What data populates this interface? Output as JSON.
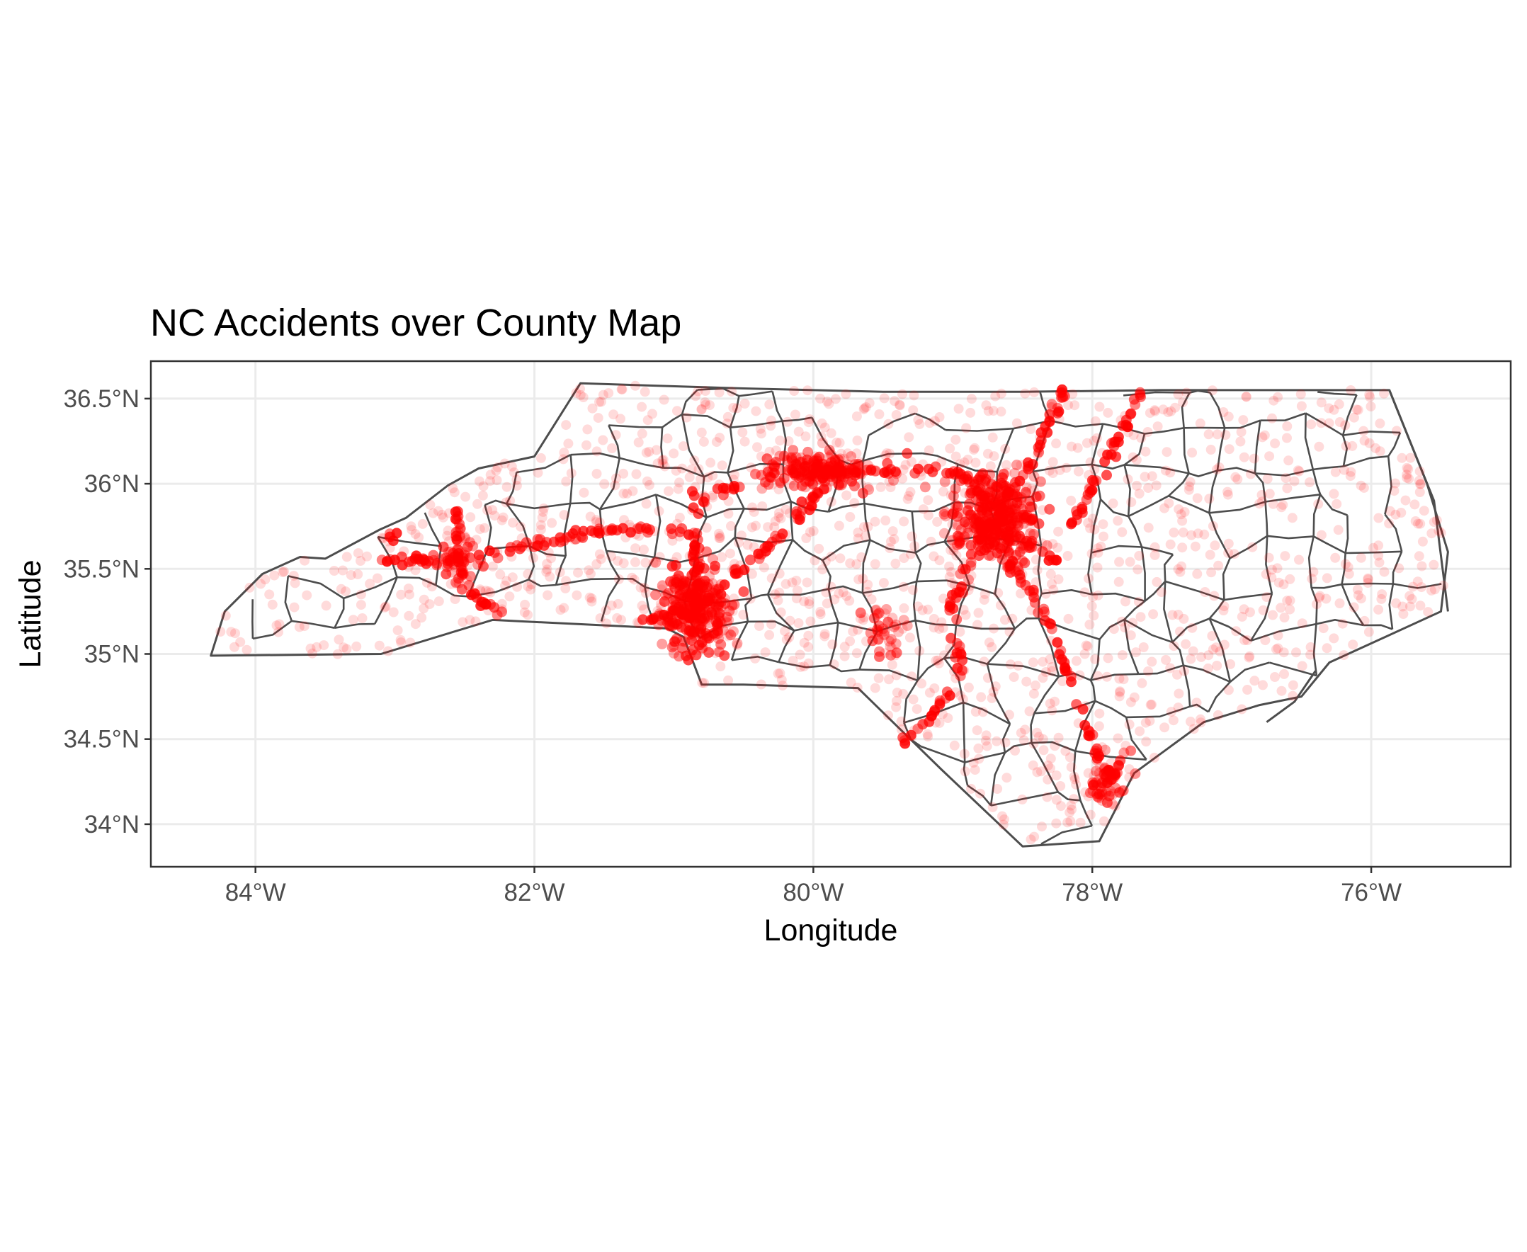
{
  "chart_data": {
    "type": "scatter",
    "title": "NC Accidents over County Map",
    "xlabel": "Longitude",
    "ylabel": "Latitude",
    "x_ticks": [
      {
        "value": -84,
        "label": "84°W"
      },
      {
        "value": -82,
        "label": "82°W"
      },
      {
        "value": -80,
        "label": "80°W"
      },
      {
        "value": -78,
        "label": "78°W"
      },
      {
        "value": -76,
        "label": "76°W"
      }
    ],
    "y_ticks": [
      {
        "value": 34.0,
        "label": "34°N"
      },
      {
        "value": 34.5,
        "label": "34.5°N"
      },
      {
        "value": 35.0,
        "label": "35°N"
      },
      {
        "value": 35.5,
        "label": "35.5°N"
      },
      {
        "value": 36.0,
        "label": "36°N"
      },
      {
        "value": 36.5,
        "label": "36.5°N"
      }
    ],
    "xlim": [
      -84.75,
      -75.0
    ],
    "ylim": [
      33.75,
      36.72
    ],
    "grid": true,
    "point_color": "#ff0000",
    "outline_color": "#4d4d4d",
    "state_outline": [
      [
        -84.32,
        34.99
      ],
      [
        -84.22,
        35.25
      ],
      [
        -83.95,
        35.47
      ],
      [
        -83.68,
        35.57
      ],
      [
        -83.5,
        35.56
      ],
      [
        -83.11,
        35.73
      ],
      [
        -82.92,
        35.8
      ],
      [
        -82.62,
        35.99
      ],
      [
        -82.4,
        36.09
      ],
      [
        -82.0,
        36.16
      ],
      [
        -81.67,
        36.59
      ],
      [
        -80.5,
        36.56
      ],
      [
        -79.5,
        36.54
      ],
      [
        -78.5,
        36.54
      ],
      [
        -77.5,
        36.55
      ],
      [
        -76.3,
        36.55
      ],
      [
        -75.87,
        36.55
      ],
      [
        -75.6,
        36.0
      ],
      [
        -75.45,
        35.6
      ],
      [
        -75.5,
        35.25
      ],
      [
        -75.9,
        35.1
      ],
      [
        -76.3,
        34.95
      ],
      [
        -76.5,
        34.75
      ],
      [
        -76.8,
        34.7
      ],
      [
        -77.2,
        34.6
      ],
      [
        -77.7,
        34.3
      ],
      [
        -77.95,
        33.9
      ],
      [
        -78.5,
        33.87
      ],
      [
        -79.08,
        34.32
      ],
      [
        -79.68,
        34.8
      ],
      [
        -80.5,
        34.82
      ],
      [
        -80.8,
        34.82
      ],
      [
        -80.93,
        35.1
      ],
      [
        -81.05,
        35.15
      ],
      [
        -82.3,
        35.2
      ],
      [
        -83.1,
        35.0
      ],
      [
        -84.32,
        34.99
      ]
    ],
    "clusters": [
      {
        "name": "",
        "center": [
          -80.85,
          35.25
        ],
        "sx": 0.12,
        "sy": 0.14,
        "n": 260,
        "opacity": 0.55
      },
      {
        "name": "",
        "center": [
          -78.7,
          35.8
        ],
        "sx": 0.15,
        "sy": 0.12,
        "n": 300,
        "opacity": 0.55
      },
      {
        "name": "",
        "center": [
          -79.95,
          36.07
        ],
        "sx": 0.22,
        "sy": 0.05,
        "n": 170,
        "opacity": 0.5
      },
      {
        "name": "",
        "center": [
          -77.9,
          34.25
        ],
        "sx": 0.07,
        "sy": 0.07,
        "n": 50,
        "opacity": 0.5
      },
      {
        "name": "",
        "center": [
          -82.55,
          35.55
        ],
        "sx": 0.07,
        "sy": 0.07,
        "n": 40,
        "opacity": 0.5
      },
      {
        "name": "",
        "center": [
          -79.5,
          35.15
        ],
        "sx": 0.06,
        "sy": 0.08,
        "n": 30,
        "opacity": 0.45
      }
    ],
    "highway_paths": [
      {
        "name": "",
        "points": [
          [
            -83.05,
            35.7
          ],
          [
            -82.75,
            35.55
          ],
          [
            -82.55,
            35.55
          ],
          [
            -82.1,
            35.63
          ],
          [
            -81.5,
            35.73
          ],
          [
            -81.15,
            35.72
          ],
          [
            -80.9,
            35.72
          ],
          [
            -80.82,
            35.65
          ],
          [
            -80.82,
            35.45
          ],
          [
            -80.85,
            35.25
          ]
        ],
        "n": 85
      },
      {
        "name": "",
        "points": [
          [
            -82.55,
            35.55
          ],
          [
            -82.55,
            35.85
          ]
        ],
        "n": 15
      },
      {
        "name": "",
        "points": [
          [
            -82.55,
            35.55
          ],
          [
            -82.45,
            35.35
          ],
          [
            -82.2,
            35.22
          ]
        ],
        "n": 18
      },
      {
        "name": "",
        "points": [
          [
            -83.1,
            35.55
          ],
          [
            -82.75,
            35.55
          ]
        ],
        "n": 14
      },
      {
        "name": "",
        "points": [
          [
            -80.85,
            35.25
          ],
          [
            -80.5,
            35.5
          ],
          [
            -80.2,
            35.73
          ],
          [
            -79.95,
            35.95
          ],
          [
            -79.95,
            36.07
          ]
        ],
        "n": 45
      },
      {
        "name": "",
        "points": [
          [
            -80.8,
            35.9
          ],
          [
            -80.4,
            36.05
          ],
          [
            -79.95,
            36.07
          ],
          [
            -79.5,
            36.08
          ],
          [
            -79.1,
            36.08
          ],
          [
            -78.9,
            36.05
          ],
          [
            -78.7,
            35.8
          ]
        ],
        "n": 60
      },
      {
        "name": "",
        "points": [
          [
            -78.7,
            35.8
          ],
          [
            -78.45,
            36.1
          ],
          [
            -78.2,
            36.55
          ]
        ],
        "n": 40
      },
      {
        "name": "",
        "points": [
          [
            -78.15,
            35.75
          ],
          [
            -77.85,
            36.2
          ],
          [
            -77.65,
            36.55
          ]
        ],
        "n": 40
      },
      {
        "name": "",
        "points": [
          [
            -78.7,
            35.8
          ],
          [
            -79.0,
            35.3
          ],
          [
            -78.95,
            34.85
          ],
          [
            -79.2,
            34.6
          ],
          [
            -79.35,
            34.5
          ]
        ],
        "n": 50
      },
      {
        "name": "",
        "points": [
          [
            -78.6,
            35.55
          ],
          [
            -78.35,
            35.25
          ],
          [
            -78.15,
            34.85
          ],
          [
            -78.0,
            34.5
          ],
          [
            -77.9,
            34.25
          ]
        ],
        "n": 50
      },
      {
        "name": "",
        "points": [
          [
            -77.9,
            34.25
          ],
          [
            -77.7,
            34.45
          ]
        ],
        "n": 10
      },
      {
        "name": "",
        "points": [
          [
            -80.85,
            35.25
          ],
          [
            -81.2,
            35.2
          ]
        ],
        "n": 14
      },
      {
        "name": "",
        "points": [
          [
            -80.85,
            35.25
          ],
          [
            -80.85,
            36.0
          ]
        ],
        "n": 20
      },
      {
        "name": "",
        "points": [
          [
            -78.7,
            35.8
          ],
          [
            -78.2,
            35.5
          ]
        ],
        "n": 14
      }
    ],
    "background_points": {
      "n": 1350,
      "opacity": 0.14
    }
  }
}
